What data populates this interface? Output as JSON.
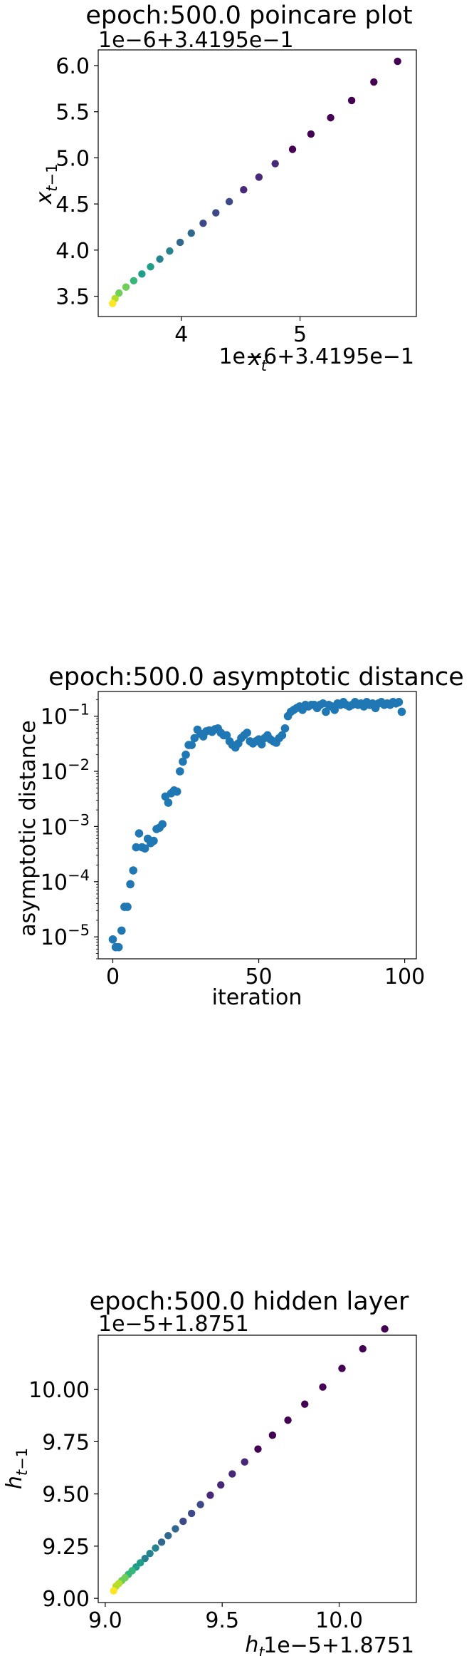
{
  "chart_data": [
    {
      "type": "scatter",
      "title": "epoch:500.0 poincare plot",
      "xlabel": "x_t",
      "ylabel": "x_{t-1}",
      "x_offset_text": "1e−6+3.4195e−1",
      "y_offset_text": "1e−6+3.4195e−1",
      "xlim": [
        3.3,
        5.98
      ],
      "ylim": [
        3.28,
        6.17
      ],
      "xticks": [
        4,
        5
      ],
      "xtick_labels": [
        "4",
        "5"
      ],
      "yticks": [
        3.5,
        4.0,
        4.5,
        5.0,
        5.5,
        6.0
      ],
      "ytick_labels": [
        "3.5",
        "4.0",
        "4.5",
        "5.0",
        "5.5",
        "6.0"
      ],
      "colormap": "viridis (dark purple at large values to yellow near the fixed point)",
      "points_x": [
        5.822,
        5.622,
        5.435,
        5.258,
        5.092,
        4.937,
        4.791,
        4.654,
        4.525,
        4.404,
        4.291,
        4.184,
        4.084,
        3.99,
        3.902,
        3.819,
        3.741,
        3.668,
        3.599,
        3.534,
        3.475,
        3.442,
        3.421
      ],
      "points_y": [
        6.046,
        5.822,
        5.622,
        5.435,
        5.258,
        5.092,
        4.937,
        4.791,
        4.654,
        4.525,
        4.404,
        4.291,
        4.184,
        4.084,
        3.99,
        3.902,
        3.819,
        3.741,
        3.668,
        3.599,
        3.534,
        3.475,
        3.421
      ]
    },
    {
      "type": "scatter",
      "title": "epoch:500.0 asymptotic distance",
      "xlabel": "iteration",
      "ylabel": "asymptotic distance",
      "yscale": "log",
      "xlim": [
        -5,
        104
      ],
      "ylim": [
        4e-06,
        0.28
      ],
      "xticks": [
        0,
        50,
        100
      ],
      "xtick_labels": [
        "0",
        "50",
        "100"
      ],
      "yticks": [
        1e-05,
        0.0001,
        0.001,
        0.01,
        0.1
      ],
      "ytick_base": "10",
      "ytick_exponents": [
        "−5",
        "−4",
        "−3",
        "−2",
        "−1"
      ],
      "color": "#1f77b4",
      "x": [
        0,
        1,
        2,
        3,
        4,
        5,
        6,
        7,
        8,
        9,
        10,
        11,
        12,
        13,
        14,
        15,
        16,
        17,
        18,
        19,
        20,
        21,
        22,
        23,
        24,
        25,
        26,
        27,
        28,
        29,
        30,
        31,
        32,
        33,
        34,
        35,
        36,
        37,
        38,
        39,
        40,
        41,
        42,
        43,
        44,
        45,
        46,
        47,
        48,
        49,
        50,
        51,
        52,
        53,
        54,
        55,
        56,
        57,
        58,
        59,
        60,
        61,
        62,
        63,
        64,
        65,
        66,
        67,
        68,
        69,
        70,
        71,
        72,
        73,
        74,
        75,
        76,
        77,
        78,
        79,
        80,
        81,
        82,
        83,
        84,
        85,
        86,
        87,
        88,
        89,
        90,
        91,
        92,
        93,
        94,
        95,
        96,
        97,
        98,
        99
      ],
      "y": [
        9e-06,
        6.5e-06,
        6.5e-06,
        1.3e-05,
        3.5e-05,
        3.5e-05,
        9e-05,
        0.00016,
        0.00042,
        0.00075,
        0.00042,
        0.0004,
        0.0006,
        0.0005,
        0.00055,
        0.0009,
        0.00095,
        0.0011,
        0.0035,
        0.0027,
        0.004,
        0.0045,
        0.0043,
        0.01,
        0.015,
        0.02,
        0.03,
        0.03,
        0.04,
        0.057,
        0.048,
        0.043,
        0.053,
        0.055,
        0.052,
        0.058,
        0.06,
        0.05,
        0.045,
        0.045,
        0.035,
        0.03,
        0.027,
        0.032,
        0.04,
        0.045,
        0.05,
        0.035,
        0.032,
        0.035,
        0.038,
        0.031,
        0.04,
        0.045,
        0.038,
        0.035,
        0.033,
        0.04,
        0.045,
        0.06,
        0.1,
        0.12,
        0.13,
        0.14,
        0.15,
        0.13,
        0.16,
        0.15,
        0.16,
        0.16,
        0.14,
        0.16,
        0.17,
        0.12,
        0.16,
        0.15,
        0.13,
        0.17,
        0.16,
        0.18,
        0.16,
        0.15,
        0.16,
        0.18,
        0.16,
        0.17,
        0.15,
        0.18,
        0.16,
        0.17,
        0.14,
        0.17,
        0.18,
        0.16,
        0.17,
        0.16,
        0.18,
        0.17,
        0.18,
        0.12
      ]
    },
    {
      "type": "scatter",
      "title": "epoch:500.0 hidden layer",
      "xlabel": "h_t",
      "ylabel": "h_{t-1}",
      "x_offset_text": "1e−5+1.8751",
      "y_offset_text": "1e−5+1.8751",
      "xlim": [
        8.97,
        10.33
      ],
      "ylim": [
        8.98,
        10.26
      ],
      "xticks": [
        9.0,
        9.5,
        10.0
      ],
      "xtick_labels": [
        "9.0",
        "9.5",
        "10.0"
      ],
      "yticks": [
        9.0,
        9.25,
        9.5,
        9.75,
        10.0
      ],
      "ytick_labels": [
        "9.00",
        "9.25",
        "9.50",
        "9.75",
        "10.00"
      ],
      "colormap": "viridis (dark purple at large values to yellow near the fixed point)",
      "points_x": [
        10.195,
        10.101,
        10.012,
        9.93,
        9.853,
        9.781,
        9.715,
        9.653,
        9.596,
        9.543,
        9.494,
        9.449,
        9.407,
        9.369,
        9.333,
        9.3,
        9.269,
        9.241,
        9.215,
        9.191,
        9.17,
        9.15,
        9.132,
        9.115,
        9.099,
        9.085,
        9.071,
        9.058,
        9.046,
        9.036
      ],
      "points_y": [
        10.29,
        10.195,
        10.101,
        10.012,
        9.93,
        9.853,
        9.781,
        9.715,
        9.653,
        9.596,
        9.543,
        9.494,
        9.449,
        9.407,
        9.369,
        9.333,
        9.3,
        9.269,
        9.241,
        9.215,
        9.191,
        9.17,
        9.15,
        9.132,
        9.115,
        9.099,
        9.085,
        9.071,
        9.058,
        9.036
      ]
    }
  ]
}
